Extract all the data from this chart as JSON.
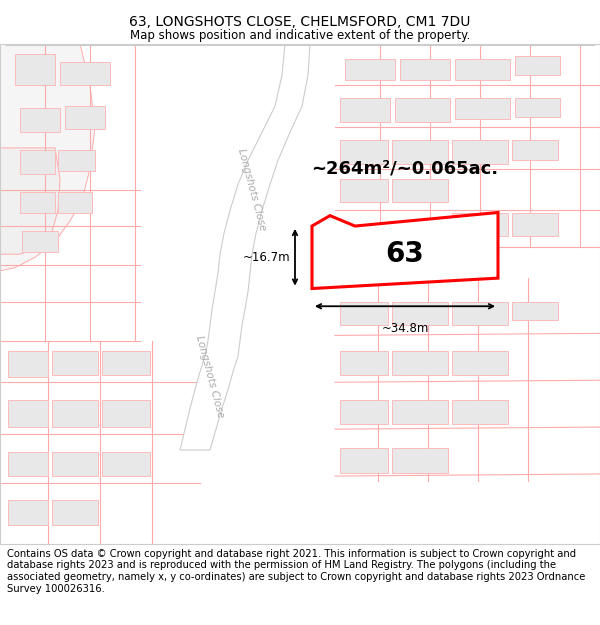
{
  "title": "63, LONGSHOTS CLOSE, CHELMSFORD, CM1 7DU",
  "subtitle": "Map shows position and indicative extent of the property.",
  "footer": "Contains OS data © Crown copyright and database right 2021. This information is subject to Crown copyright and database rights 2023 and is reproduced with the permission of HM Land Registry. The polygons (including the associated geometry, namely x, y co-ordinates) are subject to Crown copyright and database rights 2023 Ordnance Survey 100026316.",
  "area_label": "~264m²/~0.065ac.",
  "number_label": "63",
  "width_label": "~34.8m",
  "height_label": "~16.7m",
  "road_label_1": "Longshots Close",
  "road_label_2": "Longshots Close",
  "map_bg": "#ffffff",
  "plot_color": "#ff0000",
  "building_fill": "#e8e8e8",
  "building_edge": "#ffaaaa",
  "road_line_color": "#ffaaaa",
  "boundary_color": "#ffbbbb",
  "road_fill": "#ffffff",
  "road_label_color": "#aaaaaa",
  "title_fontsize": 10,
  "subtitle_fontsize": 8.5,
  "footer_fontsize": 7.2,
  "area_fontsize": 13,
  "number_fontsize": 20
}
